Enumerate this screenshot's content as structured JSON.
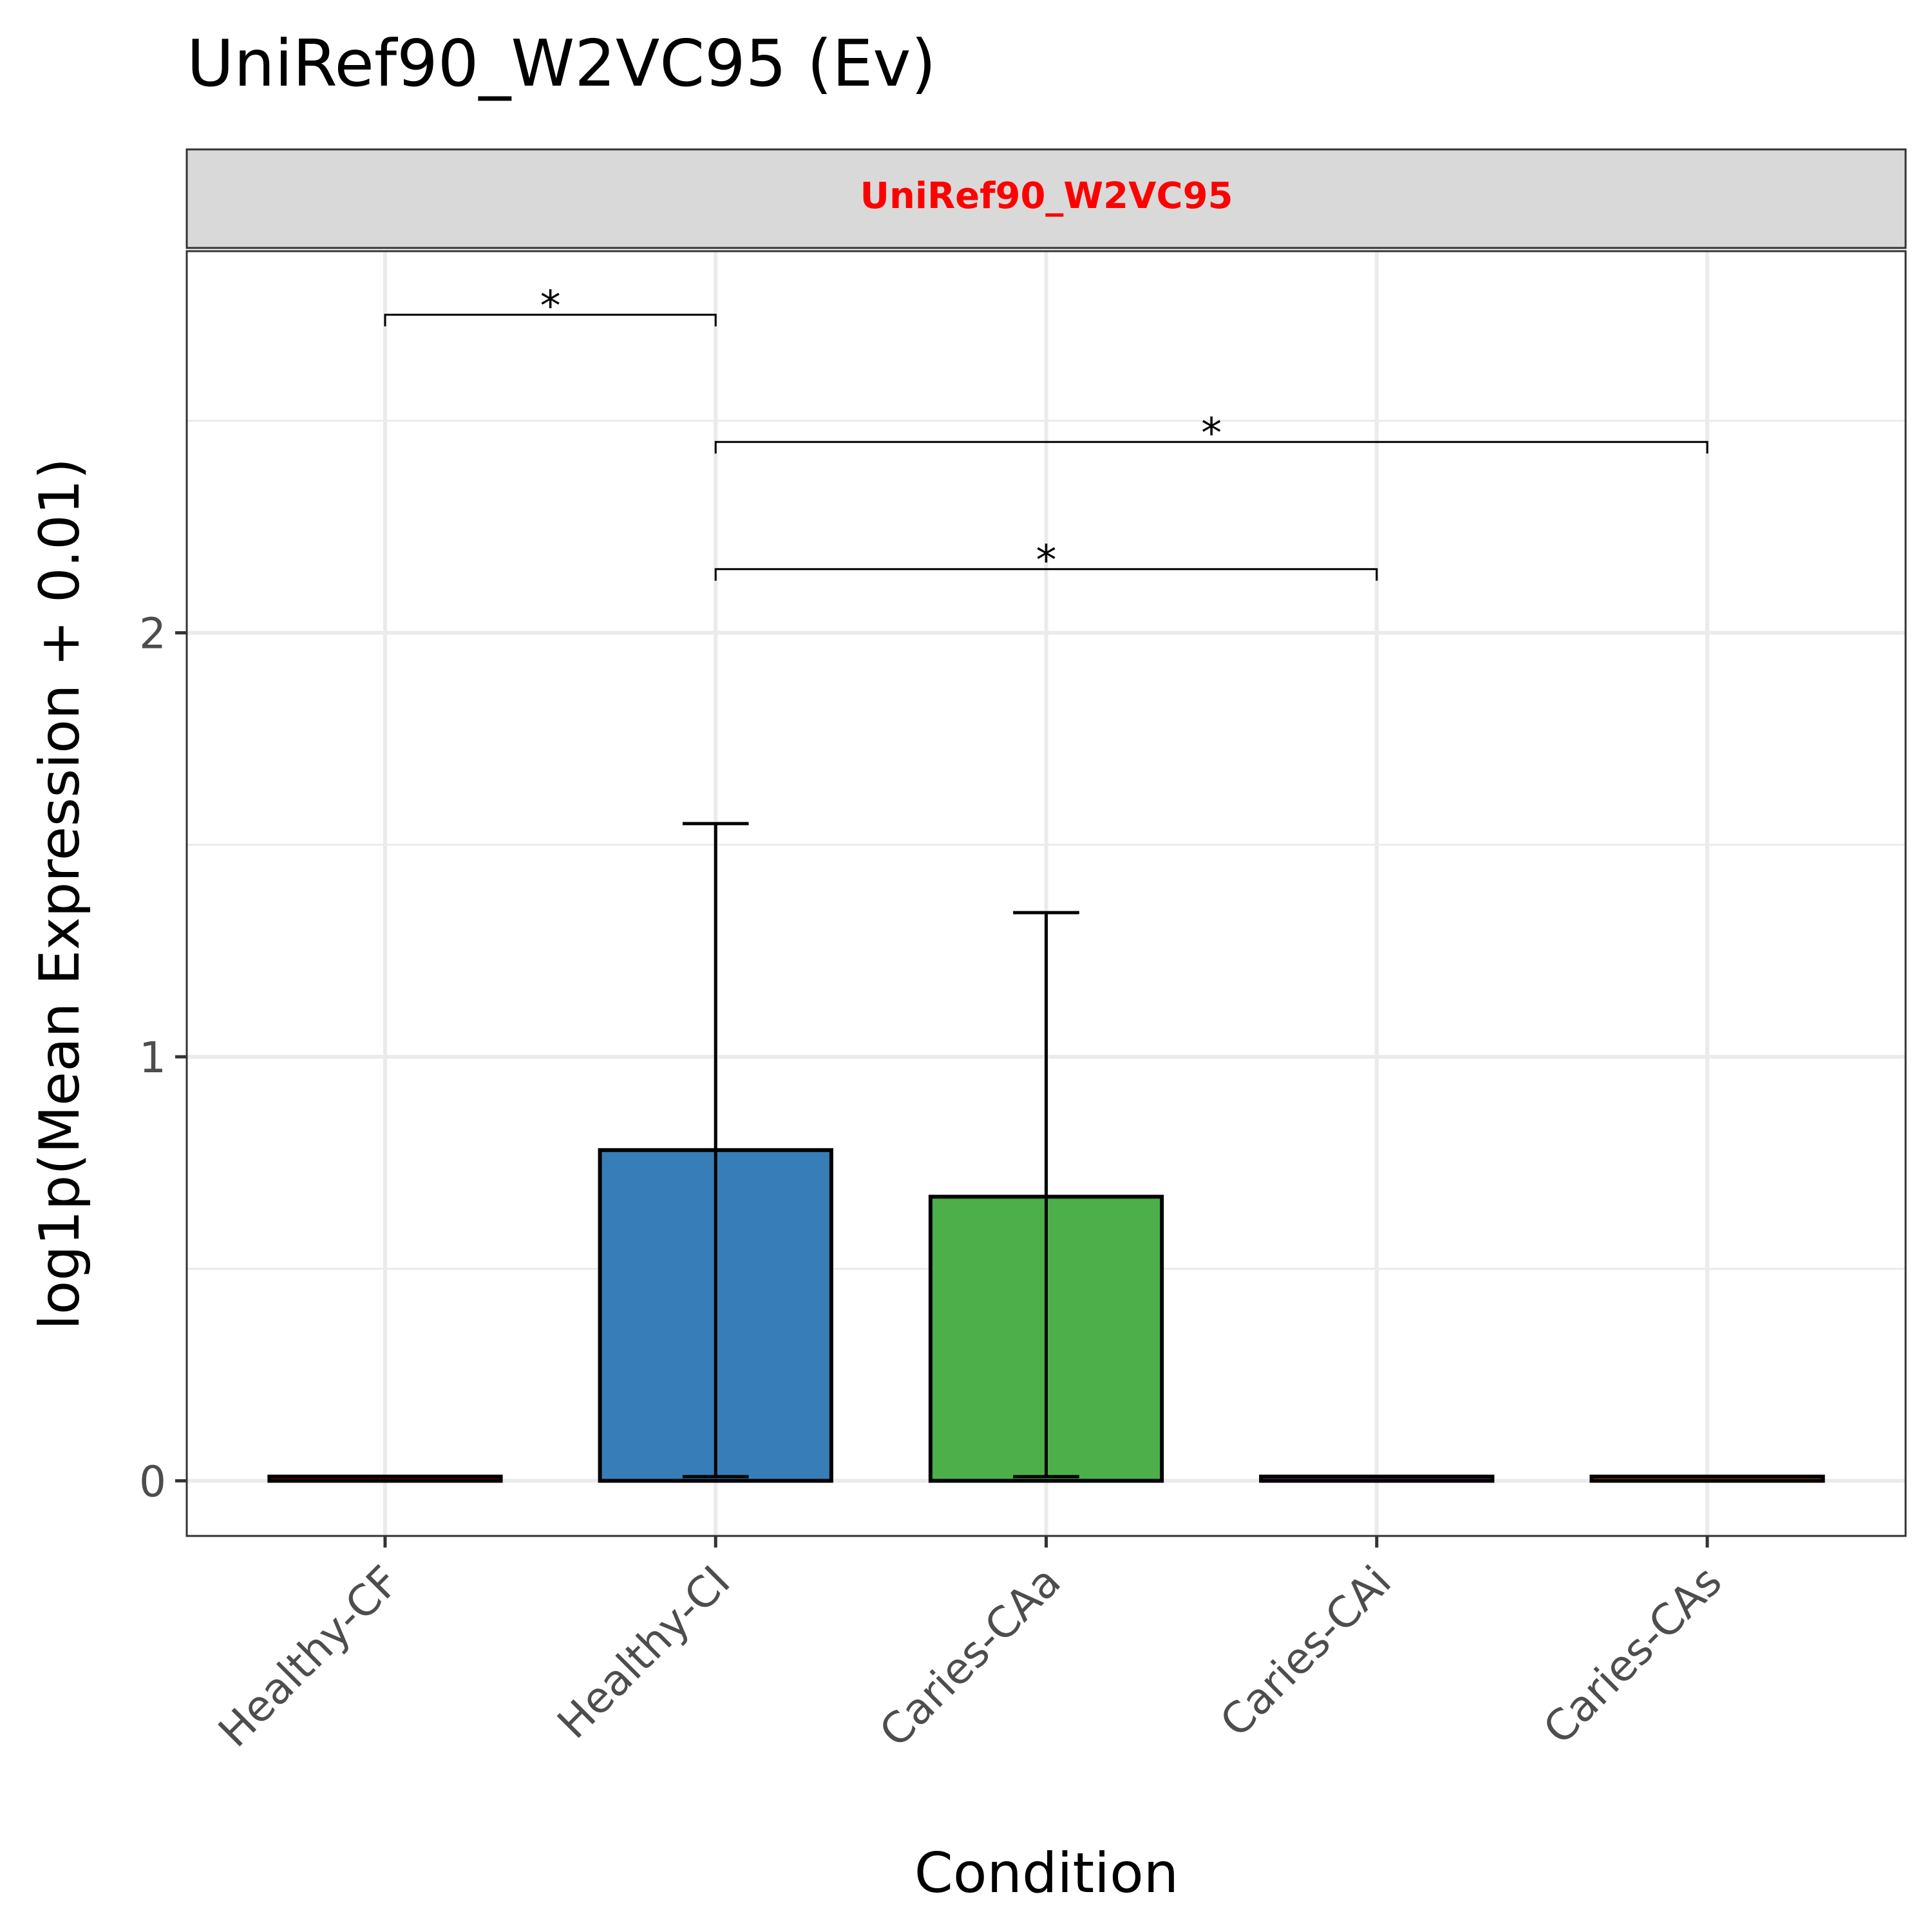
{
  "chart_data": {
    "type": "bar",
    "title": "UniRef90_W2VC95 (Ev)",
    "facet_label": "UniRef90_W2VC95",
    "xlabel": "Condition",
    "ylabel": "log1p(Mean Expression + 0.01)",
    "categories": [
      "Healthy-CF",
      "Healthy-CI",
      "Caries-CAa",
      "Caries-CAi",
      "Caries-CAs"
    ],
    "values": [
      0.01,
      0.78,
      0.67,
      0.01,
      0.01
    ],
    "error_low": [
      0.01,
      0.01,
      0.01,
      0.01,
      0.01
    ],
    "error_high": [
      0.01,
      1.55,
      1.34,
      0.01,
      0.01
    ],
    "colors": [
      "#e41a1c",
      "#377eb8",
      "#4daf4a",
      "#984ea3",
      "#ff7f00"
    ],
    "ylim": [
      -0.13,
      2.9
    ],
    "yticks": [
      0,
      1,
      2
    ],
    "ytick_labels": [
      "0",
      "1",
      "2"
    ],
    "grid": true,
    "legend": "none",
    "significance": [
      {
        "from": 0,
        "to": 1,
        "label": "*",
        "y": 2.75
      },
      {
        "from": 1,
        "to": 4,
        "label": "*",
        "y": 2.45
      },
      {
        "from": 1,
        "to": 3,
        "label": "*",
        "y": 2.15
      }
    ]
  }
}
